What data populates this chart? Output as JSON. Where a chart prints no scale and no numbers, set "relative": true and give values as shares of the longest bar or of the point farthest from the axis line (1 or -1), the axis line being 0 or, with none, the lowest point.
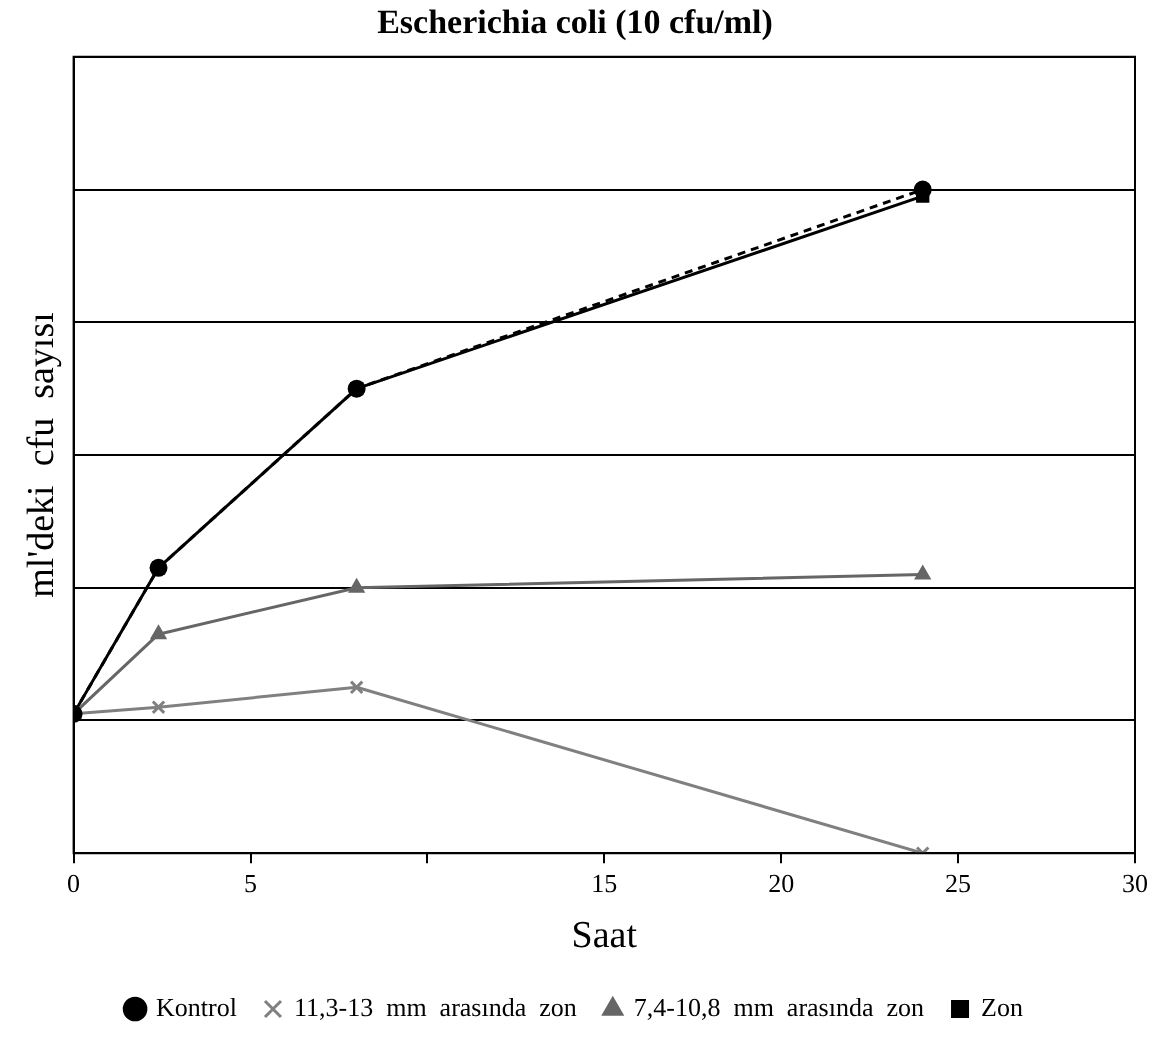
{
  "chart_data": {
    "type": "line",
    "title": "Escherichia coli (10 cfu/ml)",
    "xlabel": "Saat",
    "ylabel": "ml'deki  cfu  sayısı",
    "relative": true,
    "xlim": [
      0,
      30
    ],
    "xticks": [
      0,
      5,
      {
        "value": 10,
        "label": null
      },
      15,
      20,
      25,
      30
    ],
    "grid": "y",
    "legend": "bottom",
    "series": [
      {
        "name": "Kontrol",
        "color": "#000000",
        "marker": "circle",
        "line_style": "dashed",
        "x": [
          0,
          2.4,
          8,
          24
        ],
        "values": [
          0.21,
          0.43,
          0.7,
          1
        ]
      },
      {
        "name": "11,3-13  mm  arasında  zon",
        "color": "#808080",
        "marker": "cross",
        "line_style": "solid",
        "x": [
          0,
          2.4,
          8,
          24
        ],
        "values": [
          0.21,
          0.22,
          0.25,
          0
        ]
      },
      {
        "name": "7,4-10,8  mm  arasında  zon",
        "color": "#666666",
        "marker": "triangle",
        "line_style": "solid",
        "x": [
          0,
          2.4,
          8,
          24
        ],
        "values": [
          0.21,
          0.33,
          0.4,
          0.42
        ]
      },
      {
        "name": "Zon",
        "color": "#000000",
        "marker": "square",
        "line_style": "solid",
        "x": [
          0,
          2.4,
          8,
          24
        ],
        "values": [
          0.21,
          0.43,
          0.7,
          0.99
        ]
      }
    ]
  }
}
